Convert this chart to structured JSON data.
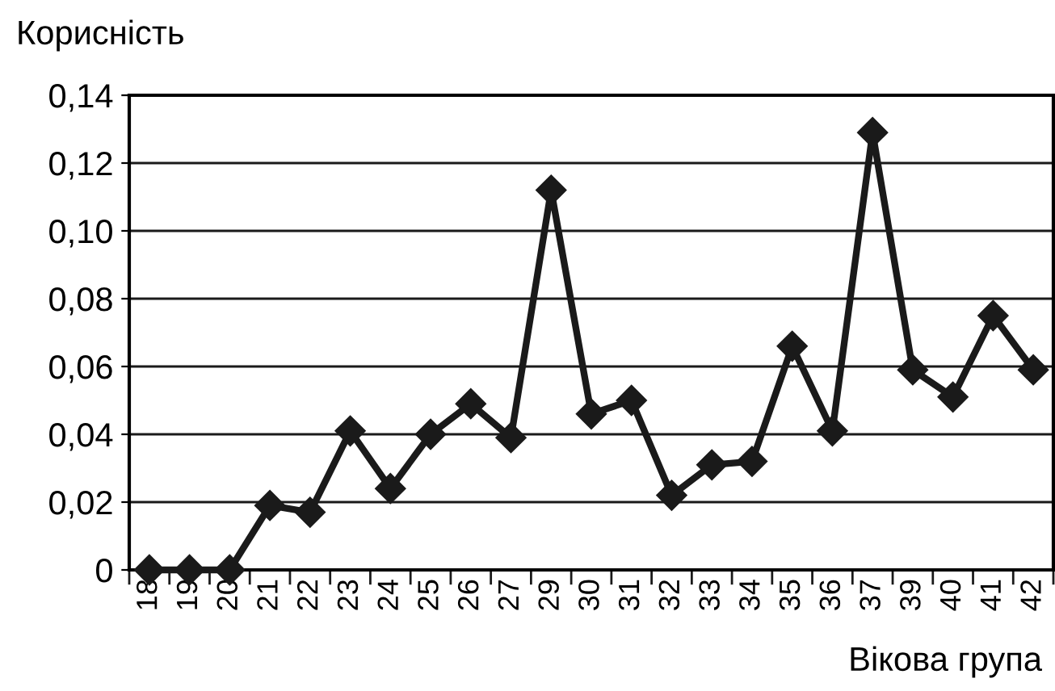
{
  "chart_data": {
    "type": "line",
    "ylabel": "Корисність",
    "xlabel": "Вікова група",
    "categories": [
      "18",
      "19",
      "20",
      "21",
      "22",
      "23",
      "24",
      "25",
      "26",
      "27",
      "29",
      "30",
      "31",
      "32",
      "33",
      "34",
      "35",
      "36",
      "37",
      "39",
      "40",
      "41",
      "42"
    ],
    "series": [
      {
        "color": "#1a1a1a",
        "values": [
          0,
          0,
          0,
          0.019,
          0.017,
          0.041,
          0.024,
          0.04,
          0.049,
          0.039,
          0.112,
          0.046,
          0.05,
          0.022,
          0.031,
          0.032,
          0.066,
          0.041,
          0.129,
          0.059,
          0.051,
          0.075,
          0.059
        ]
      }
    ],
    "ylim": [
      0,
      0.14
    ],
    "yticks": [
      {
        "value": 0,
        "label": "0"
      },
      {
        "value": 0.02,
        "label": "0,02"
      },
      {
        "value": 0.04,
        "label": "0,04"
      },
      {
        "value": 0.06,
        "label": "0,06"
      },
      {
        "value": 0.08,
        "label": "0,08"
      },
      {
        "value": 0.1,
        "label": "0,10"
      },
      {
        "value": 0.12,
        "label": "0,12"
      },
      {
        "value": 0.14,
        "label": "0,14"
      }
    ],
    "grid": "y",
    "marker": "diamond",
    "line_style": "solid"
  }
}
